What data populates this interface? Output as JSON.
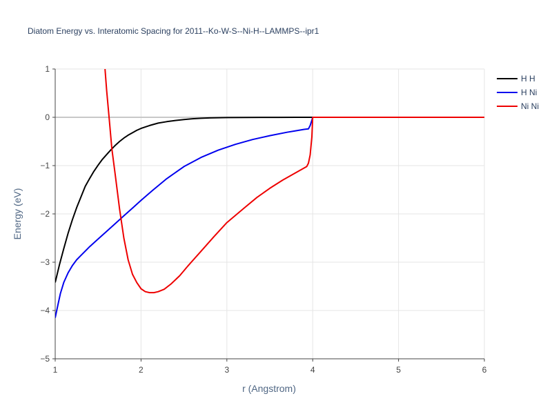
{
  "chart_data": {
    "type": "line",
    "title": "Diatom Energy vs. Interatomic Spacing for 2011--Ko-W-S--Ni-H--LAMMPS--ipr1",
    "xlabel": "r (Angstrom)",
    "ylabel": "Energy (eV)",
    "xlim": [
      1,
      6
    ],
    "ylim": [
      -5,
      1
    ],
    "xticks": [
      1,
      2,
      3,
      4,
      5,
      6
    ],
    "yticks": [
      -5,
      -4,
      -3,
      -2,
      -1,
      0,
      1
    ],
    "grid": true,
    "legend_position": "top-right",
    "series": [
      {
        "name": "H H",
        "color": "#000000",
        "x": [
          1.0,
          1.05,
          1.1,
          1.15,
          1.2,
          1.25,
          1.3,
          1.35,
          1.4,
          1.45,
          1.5,
          1.55,
          1.6,
          1.65,
          1.7,
          1.75,
          1.8,
          1.85,
          1.9,
          1.95,
          2.0,
          2.1,
          2.2,
          2.3,
          2.4,
          2.5,
          2.6,
          2.7,
          2.8,
          2.9,
          3.0,
          3.2,
          3.4,
          3.6,
          3.8,
          4.0,
          4.5,
          5.0,
          5.5,
          6.0
        ],
        "values": [
          -3.42,
          -3.05,
          -2.72,
          -2.4,
          -2.12,
          -1.87,
          -1.65,
          -1.43,
          -1.27,
          -1.12,
          -0.99,
          -0.87,
          -0.77,
          -0.67,
          -0.58,
          -0.5,
          -0.43,
          -0.37,
          -0.32,
          -0.27,
          -0.23,
          -0.17,
          -0.12,
          -0.09,
          -0.065,
          -0.045,
          -0.03,
          -0.02,
          -0.013,
          -0.009,
          -0.006,
          -0.003,
          -0.002,
          -0.001,
          -0.0005,
          0.0,
          0.0,
          0.0,
          0.0,
          0.0
        ]
      },
      {
        "name": "H Ni",
        "color": "#0000ee",
        "x": [
          1.0,
          1.03,
          1.06,
          1.1,
          1.15,
          1.2,
          1.25,
          1.3,
          1.4,
          1.5,
          1.6,
          1.7,
          1.8,
          1.9,
          2.0,
          2.13,
          2.3,
          2.5,
          2.7,
          2.9,
          3.1,
          3.3,
          3.5,
          3.7,
          3.8,
          3.9,
          3.95,
          3.97,
          3.99,
          4.0,
          4.5,
          5.0,
          5.5,
          6.0
        ],
        "values": [
          -4.15,
          -3.9,
          -3.65,
          -3.42,
          -3.22,
          -3.07,
          -2.95,
          -2.86,
          -2.68,
          -2.52,
          -2.36,
          -2.2,
          -2.04,
          -1.88,
          -1.72,
          -1.52,
          -1.27,
          -1.02,
          -0.83,
          -0.68,
          -0.56,
          -0.46,
          -0.38,
          -0.31,
          -0.28,
          -0.25,
          -0.24,
          -0.17,
          -0.06,
          0.0,
          0.0,
          0.0,
          0.0,
          0.0
        ]
      },
      {
        "name": "Ni Ni",
        "color": "#ee0000",
        "x": [
          1.58,
          1.6,
          1.63,
          1.66,
          1.7,
          1.75,
          1.8,
          1.85,
          1.9,
          1.95,
          2.0,
          2.05,
          2.1,
          2.15,
          2.2,
          2.27,
          2.35,
          2.45,
          2.55,
          2.7,
          2.85,
          3.0,
          3.2,
          3.35,
          3.5,
          3.65,
          3.75,
          3.85,
          3.93,
          3.95,
          3.97,
          3.99,
          4.0,
          4.5,
          5.0,
          5.5,
          6.0
        ],
        "values": [
          1.0,
          0.55,
          -0.05,
          -0.65,
          -1.2,
          -1.9,
          -2.5,
          -2.95,
          -3.25,
          -3.42,
          -3.55,
          -3.61,
          -3.63,
          -3.63,
          -3.61,
          -3.56,
          -3.45,
          -3.28,
          -3.07,
          -2.77,
          -2.47,
          -2.18,
          -1.88,
          -1.66,
          -1.47,
          -1.3,
          -1.2,
          -1.1,
          -1.02,
          -0.95,
          -0.78,
          -0.4,
          0.0,
          0.0,
          0.0,
          0.0,
          0.0
        ]
      }
    ]
  }
}
